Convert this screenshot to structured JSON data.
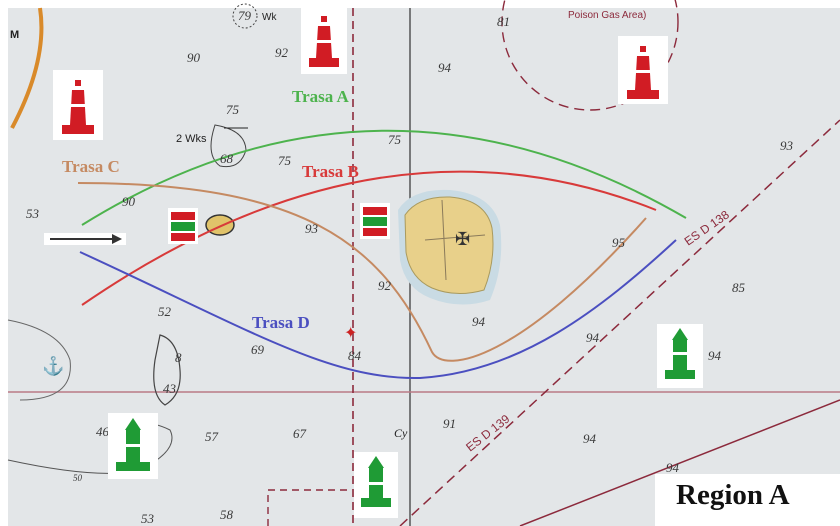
{
  "region_label": "Region A",
  "routes": [
    {
      "id": "A",
      "label": "Trasa A",
      "color": "#4db34d"
    },
    {
      "id": "B",
      "label": "Trasa B",
      "color": "#d83a3a"
    },
    {
      "id": "C",
      "label": "Trasa C",
      "color": "#c58a62"
    },
    {
      "id": "D",
      "label": "Trasa D",
      "color": "#4b4fc0"
    }
  ],
  "chart_labels": {
    "traffic_lane_1": "ES D 138",
    "traffic_lane_2": "ES D 139",
    "gas_area": "Poison Gas Area)",
    "wrecks": "2 Wks",
    "wreck": "Wk",
    "cable": "Cy",
    "m": "M"
  },
  "depths": [
    "79",
    "90",
    "92",
    "94",
    "81",
    "75",
    "68",
    "75",
    "75",
    "93",
    "53",
    "90",
    "93",
    "95",
    "92",
    "85",
    "52",
    "69",
    "94",
    "94",
    "94",
    "8",
    "43",
    "84",
    "46",
    "57",
    "67",
    "91",
    "94",
    "94",
    "50",
    "53",
    "58"
  ],
  "colors": {
    "sea": "#e3e6e8",
    "island": "#e8d08a",
    "port_marker": "#d11c24",
    "starboard_marker": "#1f9b35",
    "separation_line": "#8c2a3c",
    "grid_line": "#b97a86"
  },
  "icons": [
    "red-lateral-buoy-icon",
    "green-lateral-buoy-icon",
    "red-green-junction-mark-icon",
    "arrow-icon",
    "wreck-icon",
    "anchor-icon"
  ]
}
